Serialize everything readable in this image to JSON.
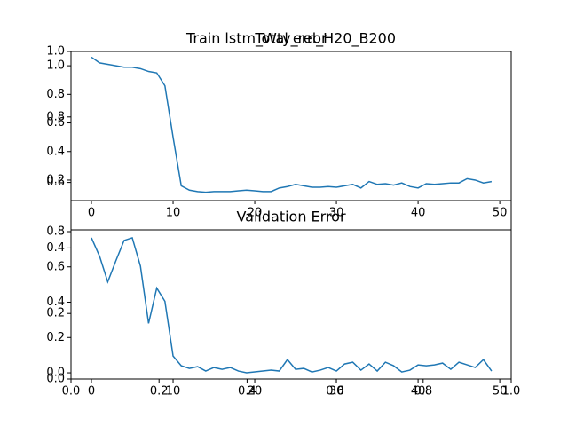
{
  "chart_data": [
    {
      "type": "axes",
      "title": "Train lstm_Wty_rel_H20_B200",
      "xlim": [
        0,
        1
      ],
      "ylim": [
        0,
        1
      ],
      "xticks": [
        {
          "value": 0,
          "label": "0.0"
        },
        {
          "value": 0.2,
          "label": "0.2"
        },
        {
          "value": 0.4,
          "label": "0.4"
        },
        {
          "value": 0.6,
          "label": "0.6"
        },
        {
          "value": 0.8,
          "label": "0.8"
        },
        {
          "value": 1,
          "label": "1.0"
        }
      ],
      "yticks": [
        {
          "value": 0,
          "label": "0.0"
        },
        {
          "value": 0.2,
          "label": "0.2"
        },
        {
          "value": 0.4,
          "label": "0.4"
        },
        {
          "value": 0.6,
          "label": "0.6"
        },
        {
          "value": 0.8,
          "label": "0.8"
        },
        {
          "value": 1,
          "label": "1.0"
        }
      ]
    },
    {
      "type": "line",
      "title": "Total error",
      "color": "#1f77b4",
      "x": [
        0,
        1,
        2,
        3,
        4,
        5,
        6,
        7,
        8,
        9,
        10,
        11,
        12,
        13,
        14,
        15,
        16,
        17,
        18,
        19,
        20,
        21,
        22,
        23,
        24,
        25,
        26,
        27,
        28,
        29,
        30,
        31,
        32,
        33,
        34,
        35,
        36,
        37,
        38,
        39,
        40,
        41,
        42,
        43,
        44,
        45,
        46,
        47,
        48,
        49
      ],
      "values": [
        1.06,
        1.02,
        1.01,
        1.0,
        0.99,
        0.99,
        0.98,
        0.96,
        0.95,
        0.86,
        0.5,
        0.16,
        0.13,
        0.12,
        0.115,
        0.12,
        0.12,
        0.12,
        0.125,
        0.13,
        0.125,
        0.12,
        0.12,
        0.145,
        0.155,
        0.17,
        0.16,
        0.15,
        0.15,
        0.155,
        0.15,
        0.16,
        0.17,
        0.145,
        0.19,
        0.17,
        0.175,
        0.165,
        0.18,
        0.155,
        0.145,
        0.175,
        0.17,
        0.175,
        0.18,
        0.18,
        0.21,
        0.2,
        0.18,
        0.19
      ],
      "xlim": [
        -2.5,
        51.4
      ],
      "ylim": [
        0.057,
        1.1
      ],
      "xticks": [
        0,
        10,
        20,
        30,
        40,
        50
      ],
      "yticks": [
        {
          "value": 0.2,
          "label": "0.2"
        },
        {
          "value": 0.4,
          "label": "0.4"
        },
        {
          "value": 0.6,
          "label": "0.6"
        },
        {
          "value": 0.8,
          "label": "0.8"
        },
        {
          "value": 1,
          "label": "1.0"
        }
      ]
    },
    {
      "type": "line",
      "title": "Validation Error",
      "color": "#1f77b4",
      "x": [
        0,
        1,
        2,
        3,
        4,
        5,
        6,
        7,
        8,
        9,
        10,
        11,
        12,
        13,
        14,
        15,
        16,
        17,
        18,
        19,
        20,
        21,
        22,
        23,
        24,
        25,
        26,
        27,
        28,
        29,
        30,
        31,
        32,
        33,
        34,
        35,
        36,
        37,
        38,
        39,
        40,
        41,
        42,
        43,
        44,
        45,
        46,
        47,
        48,
        49
      ],
      "values": [
        0.765,
        0.66,
        0.515,
        0.635,
        0.75,
        0.765,
        0.605,
        0.28,
        0.48,
        0.405,
        0.095,
        0.04,
        0.025,
        0.035,
        0.01,
        0.03,
        0.02,
        0.03,
        0.01,
        0.0,
        0.005,
        0.01,
        0.015,
        0.01,
        0.075,
        0.02,
        0.025,
        0.005,
        0.015,
        0.03,
        0.01,
        0.05,
        0.06,
        0.015,
        0.05,
        0.01,
        0.06,
        0.04,
        0.005,
        0.015,
        0.045,
        0.04,
        0.045,
        0.055,
        0.02,
        0.06,
        0.045,
        0.03,
        0.075,
        0.01
      ],
      "xlim": [
        -2.5,
        51.4
      ],
      "ylim": [
        -0.035,
        0.81
      ],
      "xticks": [
        0,
        10,
        20,
        30,
        40,
        50
      ],
      "yticks": [
        {
          "value": 0,
          "label": "0.0"
        },
        {
          "value": 0.2,
          "label": "0.2"
        },
        {
          "value": 0.4,
          "label": "0.4"
        },
        {
          "value": 0.6,
          "label": "0.6"
        },
        {
          "value": 0.8,
          "label": "0.8"
        }
      ]
    }
  ]
}
